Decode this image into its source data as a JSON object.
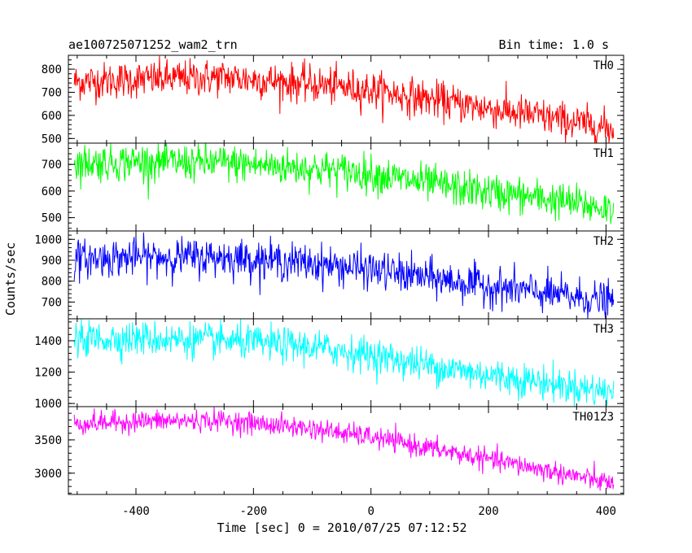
{
  "header": {
    "title": "ae100725071252_wam2_trn",
    "bin_time": "Bin time: 1.0 s"
  },
  "axes": {
    "xlabel": "Time [sec] 0 = 2010/07/25 07:12:52",
    "ylabel": "Counts/sec"
  },
  "chart_data": {
    "type": "line",
    "title": "ae100725071252_wam2_trn",
    "xlabel": "Time [sec] 0 = 2010/07/25 07:12:52",
    "ylabel": "Counts/sec",
    "xlim": [
      -515,
      430
    ],
    "x_ticks": [
      -400,
      -200,
      0,
      200,
      400
    ],
    "x_range_data": [
      -505,
      413
    ],
    "bin_time_s": 1.0,
    "grid": false,
    "panels": [
      {
        "name": "TH0",
        "color": "#ff0000",
        "ylim": [
          480,
          860
        ],
        "y_ticks": [
          500,
          600,
          700,
          800
        ],
        "trend": [
          [
            -505,
            745
          ],
          [
            -400,
            755
          ],
          [
            -250,
            765
          ],
          [
            -100,
            735
          ],
          [
            0,
            710
          ],
          [
            50,
            690
          ],
          [
            150,
            650
          ],
          [
            300,
            590
          ],
          [
            413,
            540
          ]
        ],
        "noise_sd": 40
      },
      {
        "name": "TH1",
        "color": "#00ff00",
        "ylim": [
          450,
          780
        ],
        "y_ticks": [
          500,
          600,
          700
        ],
        "trend": [
          [
            -505,
            705
          ],
          [
            -400,
            710
          ],
          [
            -250,
            705
          ],
          [
            -100,
            685
          ],
          [
            0,
            665
          ],
          [
            50,
            645
          ],
          [
            150,
            610
          ],
          [
            300,
            570
          ],
          [
            413,
            530
          ]
        ],
        "noise_sd": 35
      },
      {
        "name": "TH2",
        "color": "#0000ff",
        "ylim": [
          620,
          1040
        ],
        "y_ticks": [
          700,
          800,
          900,
          1000
        ],
        "trend": [
          [
            -505,
            905
          ],
          [
            -400,
            915
          ],
          [
            -250,
            915
          ],
          [
            -100,
            885
          ],
          [
            0,
            855
          ],
          [
            50,
            835
          ],
          [
            150,
            795
          ],
          [
            300,
            740
          ],
          [
            413,
            700
          ]
        ],
        "noise_sd": 45
      },
      {
        "name": "TH3",
        "color": "#00ffff",
        "ylim": [
          980,
          1540
        ],
        "y_ticks": [
          1000,
          1200,
          1400
        ],
        "trend": [
          [
            -505,
            1410
          ],
          [
            -400,
            1415
          ],
          [
            -250,
            1400
          ],
          [
            -100,
            1360
          ],
          [
            0,
            1310
          ],
          [
            50,
            1275
          ],
          [
            150,
            1210
          ],
          [
            300,
            1130
          ],
          [
            413,
            1070
          ]
        ],
        "noise_sd": 55
      },
      {
        "name": "TH0123",
        "color": "#ff00ff",
        "ylim": [
          2680,
          4000
        ],
        "y_ticks": [
          3000,
          3500
        ],
        "trend": [
          [
            -505,
            3740
          ],
          [
            -400,
            3780
          ],
          [
            -250,
            3790
          ],
          [
            -100,
            3670
          ],
          [
            0,
            3540
          ],
          [
            50,
            3460
          ],
          [
            150,
            3290
          ],
          [
            300,
            3040
          ],
          [
            413,
            2840
          ]
        ],
        "noise_sd": 80
      }
    ]
  }
}
